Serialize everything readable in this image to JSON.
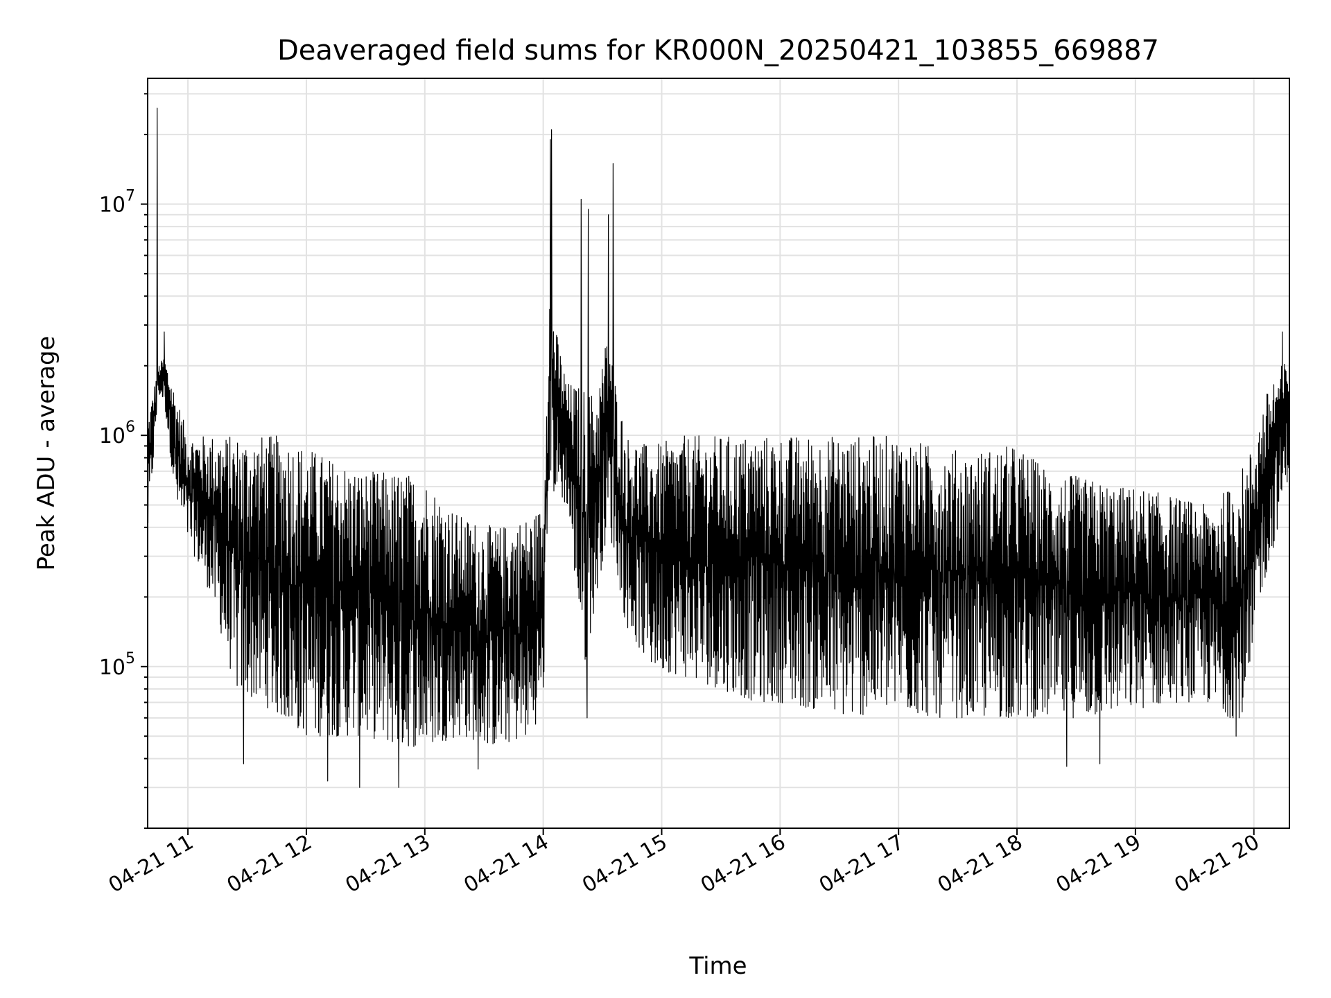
{
  "chart_data": {
    "type": "line",
    "title": "Deaveraged field sums for KR000N_20250421_103855_669887",
    "xlabel": "Time",
    "ylabel": "Peak ADU - average",
    "x_ticks": [
      "04-21 11",
      "04-21 12",
      "04-21 13",
      "04-21 14",
      "04-21 15",
      "04-21 16",
      "04-21 17",
      "04-21 18",
      "04-21 19",
      "04-21 20"
    ],
    "x_tick_times_hours": [
      11,
      12,
      13,
      14,
      15,
      16,
      17,
      18,
      19,
      20
    ],
    "x_range_hours": [
      10.66,
      20.3
    ],
    "y_scale": "log",
    "y_ticks": [
      100000,
      1000000,
      10000000
    ],
    "y_tick_labels": [
      {
        "base": "10",
        "exp": "5"
      },
      {
        "base": "10",
        "exp": "6"
      },
      {
        "base": "10",
        "exp": "7"
      }
    ],
    "ylim": [
      20000,
      35000000
    ],
    "grid": true,
    "line_color": "#000000",
    "series": [
      {
        "envelope": {
          "time_hours": [
            10.66,
            10.75,
            10.8,
            10.9,
            11.0,
            11.2,
            11.4,
            11.6,
            11.8,
            12.0,
            12.2,
            12.5,
            12.8,
            13.0,
            13.3,
            13.6,
            13.9,
            14.0,
            14.05,
            14.1,
            14.2,
            14.35,
            14.45,
            14.55,
            14.6,
            14.7,
            14.9,
            15.2,
            15.5,
            15.8,
            16.0,
            16.3,
            16.6,
            16.9,
            17.0,
            17.3,
            17.6,
            17.9,
            18.0,
            18.3,
            18.6,
            18.9,
            19.0,
            19.3,
            19.6,
            19.8,
            19.95,
            20.05,
            20.15,
            20.3
          ],
          "upper": [
            1200000,
            2000000,
            2200000,
            1500000,
            1000000,
            1000000,
            1000000,
            1000000,
            1000000,
            900000,
            800000,
            700000,
            700000,
            650000,
            450000,
            400000,
            450000,
            500000,
            5000000,
            3000000,
            1700000,
            1600000,
            1500000,
            3000000,
            1800000,
            1000000,
            900000,
            1000000,
            1000000,
            1000000,
            1000000,
            1000000,
            1000000,
            1000000,
            1000000,
            900000,
            850000,
            900000,
            900000,
            700000,
            650000,
            600000,
            600000,
            550000,
            500000,
            600000,
            800000,
            1200000,
            1800000,
            2200000
          ],
          "lower": [
            350000,
            1500000,
            1400000,
            500000,
            350000,
            200000,
            80000,
            70000,
            60000,
            50000,
            50000,
            50000,
            45000,
            45000,
            50000,
            45000,
            50000,
            70000,
            600000,
            550000,
            500000,
            100000,
            200000,
            400000,
            300000,
            150000,
            100000,
            90000,
            80000,
            70000,
            70000,
            65000,
            60000,
            65000,
            65000,
            60000,
            60000,
            60000,
            60000,
            60000,
            60000,
            65000,
            65000,
            70000,
            70000,
            60000,
            60000,
            200000,
            300000,
            700000
          ]
        },
        "spikes": [
          {
            "time_hours": 10.74,
            "value": 26000000
          },
          {
            "time_hours": 14.07,
            "value": 21000000
          },
          {
            "time_hours": 14.06,
            "value": 19000000
          },
          {
            "time_hours": 14.32,
            "value": 10500000
          },
          {
            "time_hours": 14.38,
            "value": 9500000
          },
          {
            "time_hours": 14.59,
            "value": 15000000
          },
          {
            "time_hours": 14.55,
            "value": 9000000
          },
          {
            "time_hours": 10.8,
            "value": 2800000
          },
          {
            "time_hours": 20.24,
            "value": 2800000
          }
        ],
        "dips": [
          {
            "time_hours": 12.45,
            "value": 30000
          },
          {
            "time_hours": 12.78,
            "value": 30000
          },
          {
            "time_hours": 12.18,
            "value": 32000
          },
          {
            "time_hours": 13.45,
            "value": 36000
          },
          {
            "time_hours": 18.42,
            "value": 37000
          },
          {
            "time_hours": 18.7,
            "value": 38000
          },
          {
            "time_hours": 11.47,
            "value": 38000
          },
          {
            "time_hours": 14.37,
            "value": 60000
          },
          {
            "time_hours": 19.85,
            "value": 50000
          }
        ]
      }
    ]
  }
}
